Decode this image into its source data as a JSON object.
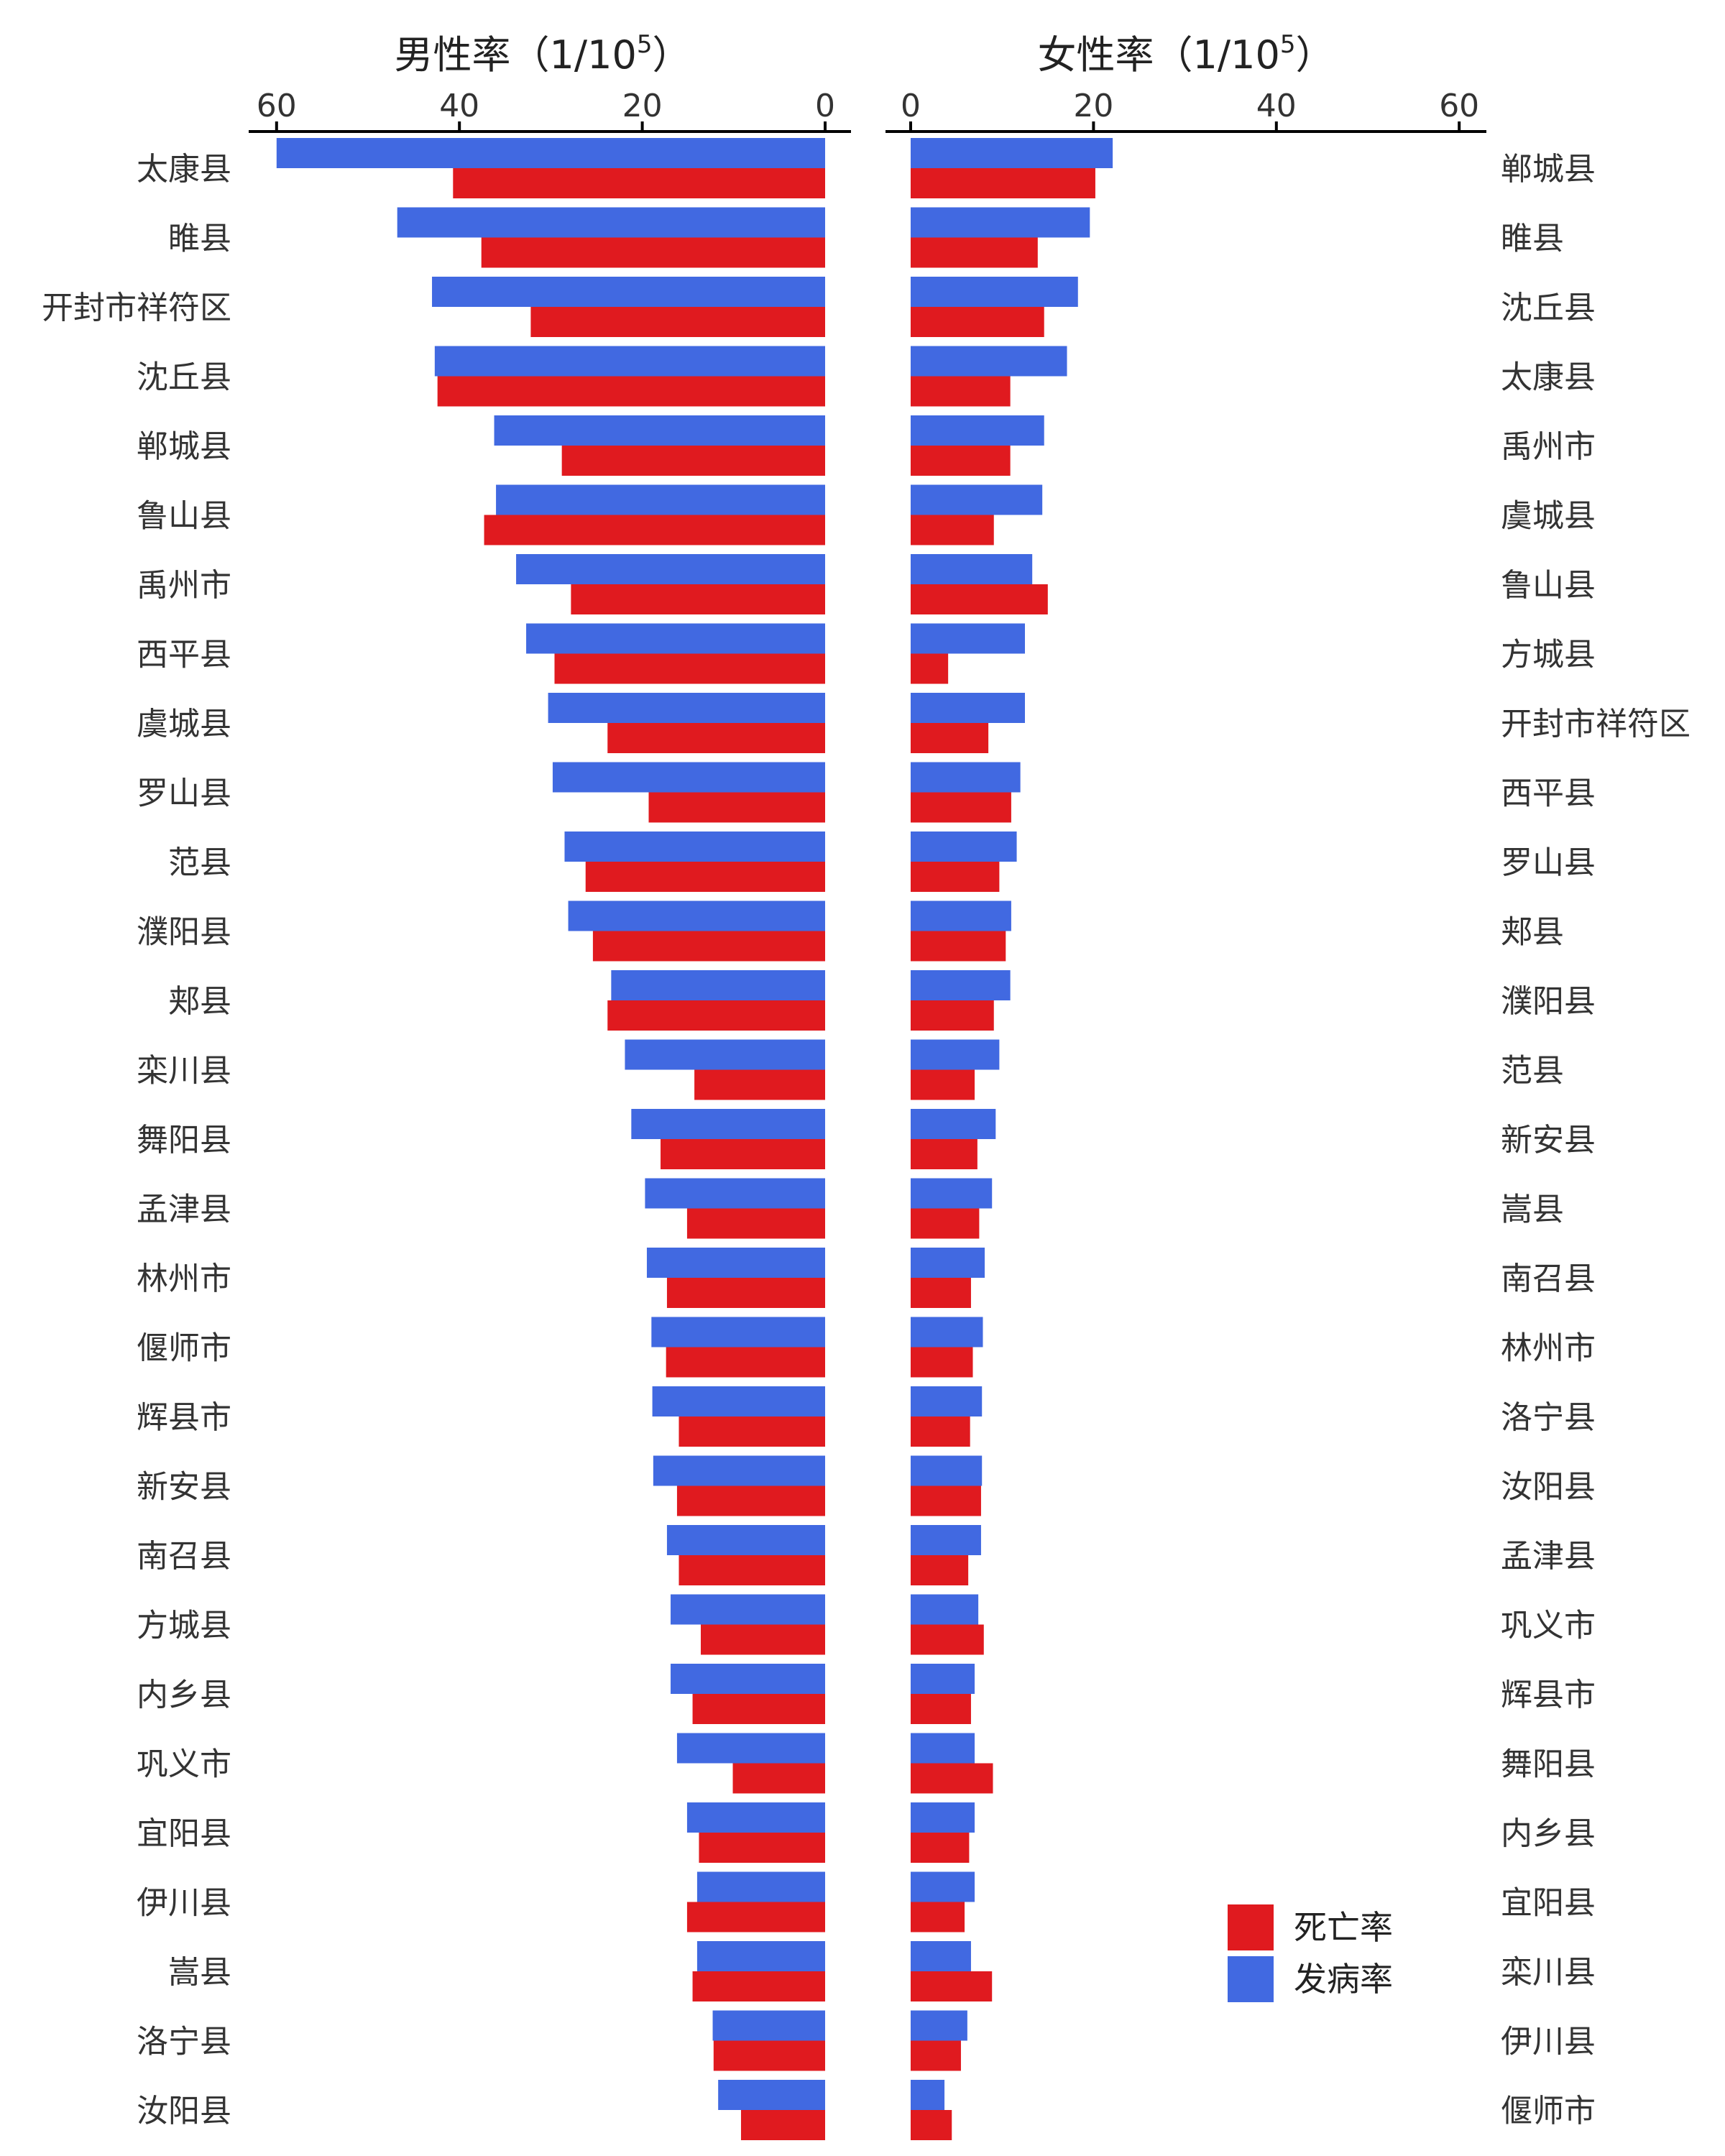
{
  "colors": {
    "mortality": "#e01a1f",
    "incidence": "#4169e1",
    "axis": "#000000",
    "text": "#333333"
  },
  "legend": {
    "items": [
      {
        "key": "mortality",
        "label": "死亡率"
      },
      {
        "key": "incidence",
        "label": "发病率"
      }
    ],
    "position": "bottom-right"
  },
  "chart_data": [
    {
      "type": "bar",
      "orientation": "horizontal-mirrored",
      "title_main": "男性率（1/10",
      "title_sup": "5",
      "title_close": "）",
      "xlim": [
        0,
        60
      ],
      "x_ticks": [
        "60",
        "40",
        "20",
        "0"
      ],
      "categories": [
        "太康县",
        "睢县",
        "开封市祥符区",
        "沈丘县",
        "郸城县",
        "鲁山县",
        "禹州市",
        "西平县",
        "虞城县",
        "罗山县",
        "范县",
        "濮阳县",
        "郏县",
        "栾川县",
        "舞阳县",
        "孟津县",
        "林州市",
        "偃师市",
        "辉县市",
        "新安县",
        "南召县",
        "方城县",
        "内乡县",
        "巩义市",
        "宜阳县",
        "伊川县",
        "嵩县",
        "洛宁县",
        "汝阳县"
      ],
      "series": [
        {
          "name": "发病率",
          "key": "incidence",
          "values": [
            60.0,
            46.8,
            43.0,
            42.7,
            36.2,
            36.0,
            33.8,
            32.7,
            30.3,
            29.8,
            28.5,
            28.1,
            23.4,
            21.9,
            21.2,
            19.7,
            19.5,
            19.0,
            18.9,
            18.8,
            17.3,
            16.9,
            16.9,
            16.2,
            15.1,
            14.0,
            14.0,
            12.3,
            11.7
          ]
        },
        {
          "name": "死亡率",
          "key": "mortality",
          "values": [
            40.7,
            37.6,
            32.2,
            42.4,
            28.8,
            37.3,
            27.8,
            29.6,
            23.8,
            19.3,
            26.2,
            25.4,
            23.8,
            14.3,
            18.0,
            15.1,
            17.3,
            17.4,
            16.0,
            16.2,
            16.0,
            13.6,
            14.5,
            10.1,
            13.8,
            15.1,
            14.5,
            12.2,
            9.2
          ]
        }
      ]
    },
    {
      "type": "bar",
      "orientation": "horizontal",
      "title_main": "女性率（1/10",
      "title_sup": "5",
      "title_close": "）",
      "xlim": [
        0,
        60
      ],
      "x_ticks": [
        "0",
        "20",
        "40",
        "60"
      ],
      "categories": [
        "郸城县",
        "睢县",
        "沈丘县",
        "太康县",
        "禹州市",
        "虞城县",
        "鲁山县",
        "方城县",
        "开封市祥符区",
        "西平县",
        "罗山县",
        "郏县",
        "濮阳县",
        "范县",
        "新安县",
        "嵩县",
        "南召县",
        "林州市",
        "洛宁县",
        "汝阳县",
        "孟津县",
        "巩义市",
        "辉县市",
        "舞阳县",
        "内乡县",
        "宜阳县",
        "栾川县",
        "伊川县",
        "偃师市"
      ],
      "series": [
        {
          "name": "发病率",
          "key": "incidence",
          "values": [
            22.1,
            19.6,
            18.3,
            17.1,
            14.6,
            14.4,
            13.3,
            12.5,
            12.5,
            12.0,
            11.6,
            11.0,
            10.9,
            9.7,
            9.3,
            8.9,
            8.1,
            7.9,
            7.8,
            7.8,
            7.7,
            7.4,
            7.0,
            7.0,
            7.0,
            7.0,
            6.6,
            6.2,
            3.7
          ]
        },
        {
          "name": "死亡率",
          "key": "mortality",
          "values": [
            20.2,
            13.9,
            14.6,
            10.9,
            10.9,
            9.1,
            15.0,
            4.1,
            8.5,
            11.0,
            9.7,
            10.4,
            9.1,
            7.0,
            7.3,
            7.5,
            6.6,
            6.8,
            6.5,
            7.7,
            6.3,
            8.0,
            6.6,
            9.0,
            6.4,
            5.9,
            8.9,
            5.5,
            4.5
          ]
        }
      ]
    }
  ]
}
